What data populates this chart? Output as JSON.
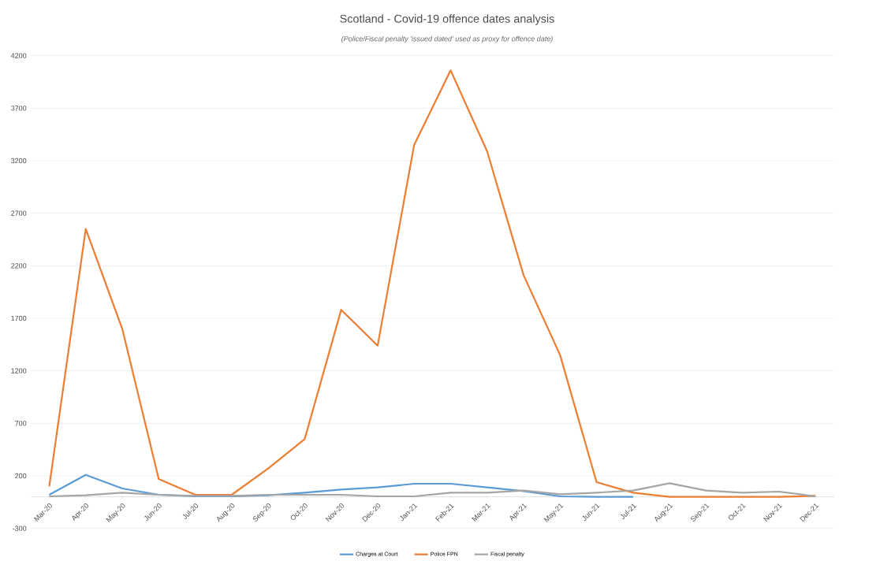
{
  "chart_data": {
    "type": "line",
    "title": "Scotland - Covid-19 offence dates analysis",
    "subtitle": "(Police/Fiscal penalty 'issued dated' used as proxy for offence date)",
    "categories": [
      "Mar-20",
      "Apr-20",
      "May-20",
      "Jun-20",
      "Jul-20",
      "Aug-20",
      "Sep-20",
      "Oct-20",
      "Nov-20",
      "Dec-20",
      "Jan-21",
      "Feb-21",
      "Mar-21",
      "Apr-21",
      "May-21",
      "Jun-21",
      "Jul-21",
      "Aug-21",
      "Sep-21",
      "Oct-21",
      "Nov-21",
      "Dec-21"
    ],
    "series": [
      {
        "name": "Charges at Court",
        "color": "#5b9bd5",
        "values": [
          20,
          210,
          80,
          20,
          5,
          5,
          15,
          40,
          70,
          90,
          125,
          125,
          90,
          55,
          5,
          0,
          0,
          null,
          null,
          null,
          null,
          null
        ]
      },
      {
        "name": "Police FPN",
        "color": "#ed7d31",
        "values": [
          100,
          2550,
          1600,
          170,
          20,
          20,
          270,
          550,
          1780,
          1440,
          3350,
          4060,
          3290,
          2110,
          1350,
          140,
          40,
          0,
          0,
          0,
          0,
          10
        ]
      },
      {
        "name": "Fiscal penalty",
        "color": "#a5a5a5",
        "values": [
          5,
          15,
          40,
          20,
          10,
          10,
          20,
          20,
          20,
          5,
          5,
          40,
          40,
          60,
          25,
          40,
          60,
          130,
          60,
          40,
          50,
          5
        ]
      }
    ],
    "ylim": [
      -300,
      4200
    ],
    "yticks": [
      -300,
      200,
      700,
      1200,
      1700,
      2200,
      2700,
      3200,
      3700,
      4200
    ],
    "grid": "y",
    "legend": "bottom",
    "marker": "none",
    "line_style": "solid"
  }
}
